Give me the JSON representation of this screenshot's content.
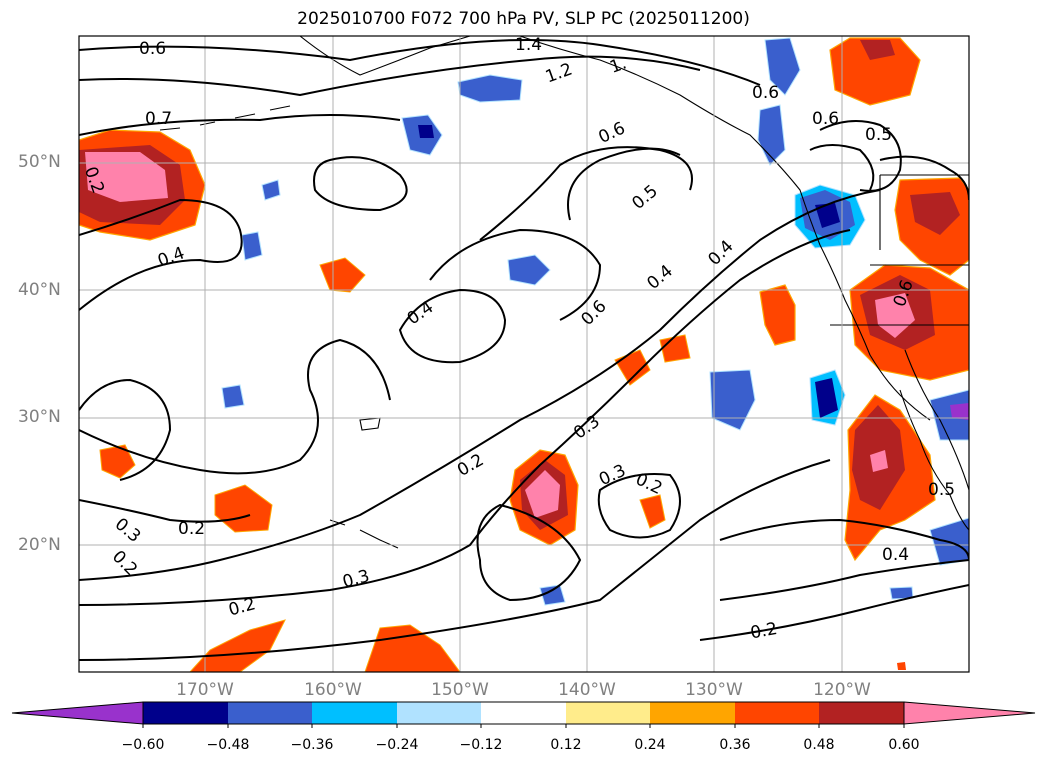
{
  "title": "2025010700 F072 700 hPa PV, SLP PC (2025011200)",
  "lat_labels": [
    "50°N",
    "40°N",
    "30°N",
    "20°N"
  ],
  "lon_labels": [
    "170°W",
    "160°W",
    "150°W",
    "140°W",
    "130°W",
    "120°W"
  ],
  "contour_labels": [
    "0.6",
    "1.4",
    "1.2",
    "1.",
    "0.7",
    "0.6",
    "0.6",
    "0.6",
    "0.4",
    "0.5",
    "0.4",
    "0.4",
    "0.6",
    "0.4",
    "0.3",
    "0.3",
    "0.2",
    "0.3",
    "0.2",
    "0.2",
    "0.3",
    "0.2",
    "0.2",
    "0.2",
    "0.4",
    "0.5",
    "0.6",
    "0.5",
    "0.2",
    "0.4"
  ],
  "colorbar": {
    "ticks": [
      "−0.60",
      "−0.48",
      "−0.36",
      "−0.24",
      "−0.12",
      "0.12",
      "0.24",
      "0.36",
      "0.48",
      "0.60"
    ],
    "colors": [
      "#9932cc",
      "#00008b",
      "#3a5fcd",
      "#00bfff",
      "#b0e2ff",
      "#ffffff",
      "#ffec8b",
      "#ffa500",
      "#ff4500",
      "#b22222",
      "#ff82ab"
    ]
  },
  "colors": {
    "neg_dark": "#00008b",
    "neg_mid": "#3a5fcd",
    "neg_light": "#00bfff",
    "pos_light": "#ff4500",
    "pos_mid": "#b22222",
    "pos_dark": "#ff82ab",
    "grid": "#b0b0b0",
    "contour": "#000000"
  }
}
